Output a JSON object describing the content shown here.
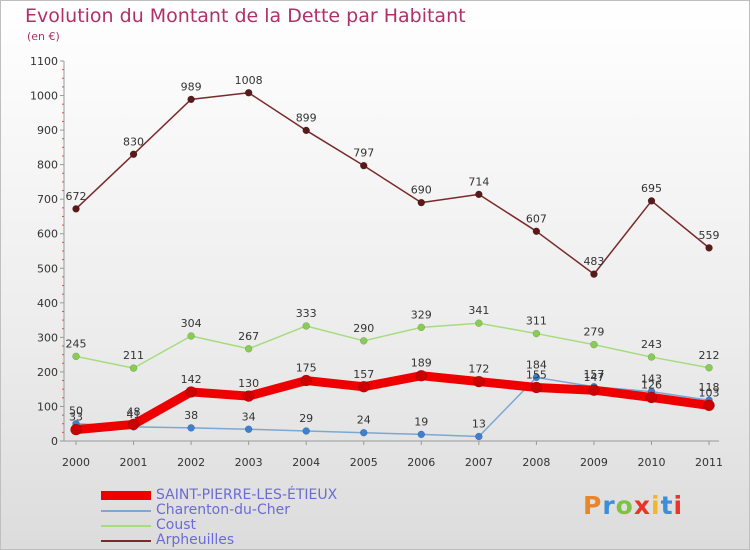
{
  "title": "Evolution du Montant de la Dette par Habitant",
  "subtitle": "(en €)",
  "logo": {
    "text": "Proxiti",
    "colors": [
      "#e8862a",
      "#3a8fd8",
      "#7fc242",
      "#e8352a",
      "#f2b629",
      "#3a8fd8",
      "#e8352a"
    ]
  },
  "chart_data": {
    "type": "line",
    "x": [
      "2000",
      "2001",
      "2002",
      "2003",
      "2004",
      "2005",
      "2006",
      "2007",
      "2008",
      "2009",
      "2010",
      "2011"
    ],
    "ylim": [
      0,
      1100
    ],
    "yticks": [
      0,
      100,
      200,
      300,
      400,
      500,
      600,
      700,
      800,
      900,
      1000,
      1100
    ],
    "grid": false,
    "legend_position": "bottom-left",
    "series": [
      {
        "name": "SAINT-PIERRE-LES-ÉTIEUX",
        "color": "#ee0000",
        "marker": "#cc0000",
        "width": 9,
        "markerRadius": 5.5,
        "values": [
          33,
          48,
          142,
          130,
          175,
          157,
          189,
          172,
          155,
          147,
          126,
          103
        ],
        "labels": [
          "33",
          "48",
          "142",
          "130",
          "175",
          "157",
          "189",
          "172",
          "155",
          "147",
          "126",
          "103"
        ]
      },
      {
        "name": "Charenton-du-Cher",
        "color": "#7ba7d6",
        "marker": "#3e7fd0",
        "width": 1.5,
        "markerRadius": 3.5,
        "values": [
          50,
          41,
          38,
          34,
          29,
          24,
          19,
          13,
          184,
          157,
          143,
          118
        ],
        "labels": [
          "50",
          "41",
          "38",
          "34",
          "29",
          "24",
          "19",
          "13",
          "184",
          "157",
          "143",
          "118"
        ]
      },
      {
        "name": "Coust",
        "color": "#a6dc7e",
        "marker": "#88cc55",
        "width": 1.5,
        "markerRadius": 3.5,
        "values": [
          245,
          211,
          304,
          267,
          333,
          290,
          329,
          341,
          311,
          279,
          243,
          212
        ],
        "labels": [
          "245",
          "211",
          "304",
          "267",
          "333",
          "290",
          "329",
          "341",
          "311",
          "279",
          "243",
          "212"
        ]
      },
      {
        "name": "Arpheuilles",
        "color": "#7a2a2a",
        "marker": "#5a1a1a",
        "width": 1.5,
        "markerRadius": 3.5,
        "values": [
          672,
          830,
          989,
          1008,
          899,
          797,
          690,
          714,
          607,
          483,
          695,
          559
        ],
        "labels": [
          "672",
          "830",
          "989",
          "1008",
          "899",
          "797",
          "690",
          "714",
          "607",
          "483",
          "695",
          "559"
        ]
      }
    ]
  }
}
